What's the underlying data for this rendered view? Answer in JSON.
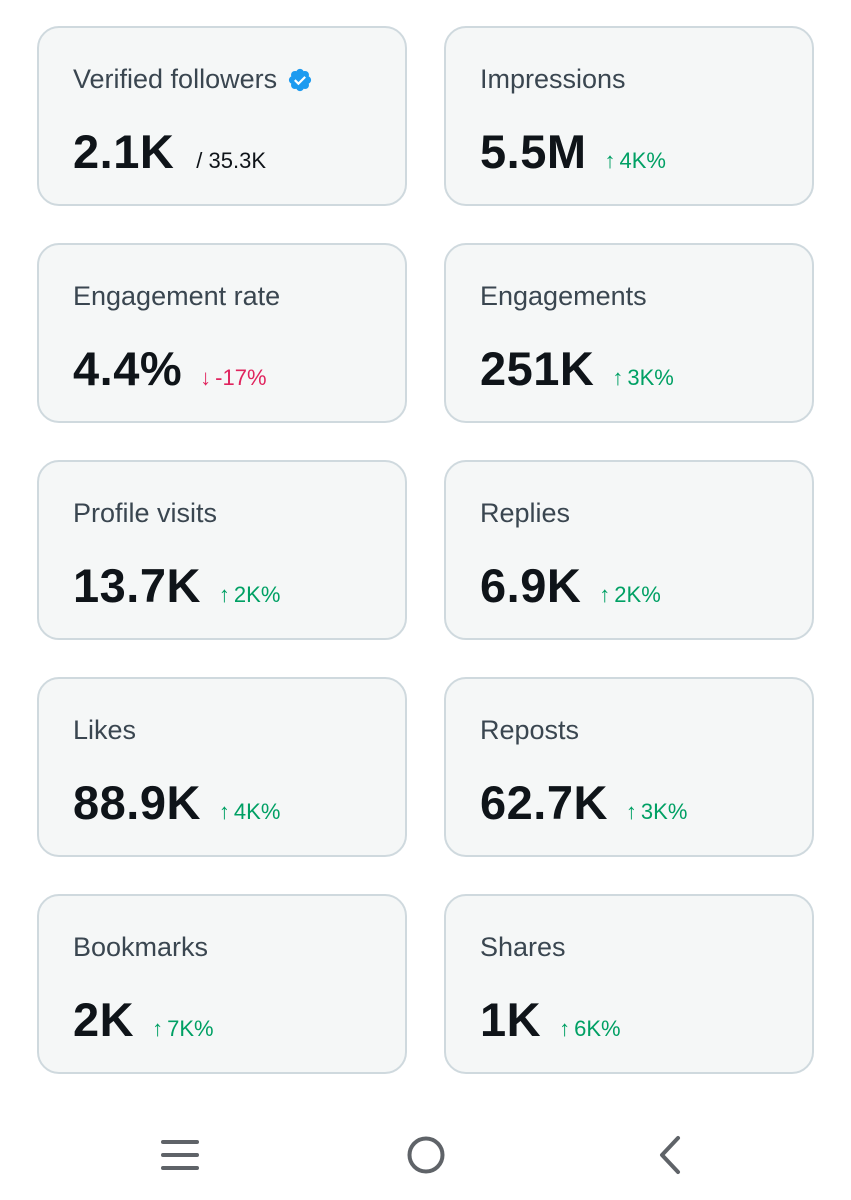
{
  "colors": {
    "card_bg": "#f5f7f7",
    "card_border": "#cfd9de",
    "label": "#3a4650",
    "value": "#0f1419",
    "positive": "#00a064",
    "negative": "#e0245e",
    "verified": "#1d9bf0",
    "nav_icon": "#5f6368"
  },
  "cards": [
    {
      "label": "Verified followers",
      "value": "2.1K",
      "sub": "/ 35.3K",
      "icon": "verified-badge-icon"
    },
    {
      "label": "Impressions",
      "value": "5.5M",
      "change": "4K%",
      "direction": "up"
    },
    {
      "label": "Engagement rate",
      "value": "4.4%",
      "change": "-17%",
      "direction": "down"
    },
    {
      "label": "Engagements",
      "value": "251K",
      "change": "3K%",
      "direction": "up"
    },
    {
      "label": "Profile visits",
      "value": "13.7K",
      "change": "2K%",
      "direction": "up"
    },
    {
      "label": "Replies",
      "value": "6.9K",
      "change": "2K%",
      "direction": "up"
    },
    {
      "label": "Likes",
      "value": "88.9K",
      "change": "4K%",
      "direction": "up"
    },
    {
      "label": "Reposts",
      "value": "62.7K",
      "change": "3K%",
      "direction": "up"
    },
    {
      "label": "Bookmarks",
      "value": "2K",
      "change": "7K%",
      "direction": "up"
    },
    {
      "label": "Shares",
      "value": "1K",
      "change": "6K%",
      "direction": "up"
    }
  ],
  "arrows": {
    "up": "↑",
    "down": "↓"
  },
  "navbar": {
    "icons": [
      "menu-icon",
      "home-circle-icon",
      "back-chevron-icon"
    ]
  }
}
